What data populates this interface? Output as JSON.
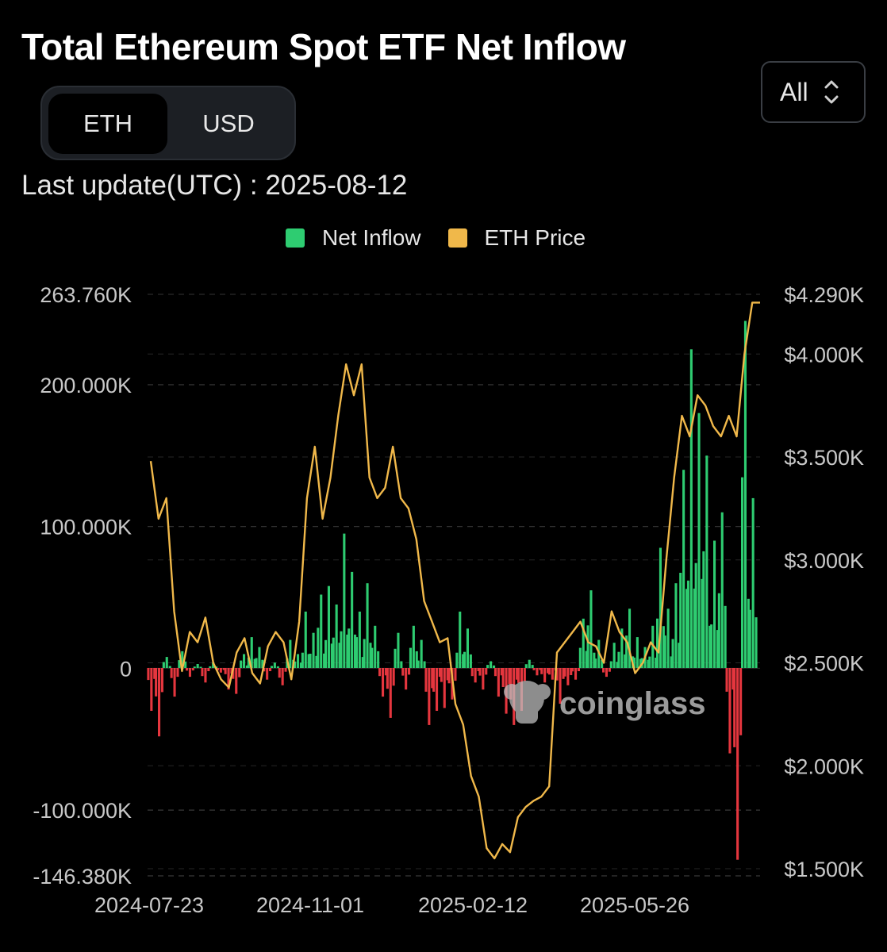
{
  "header": {
    "title": "Total Ethereum Spot ETF Net Inflow",
    "toggle": [
      "ETH",
      "USD"
    ],
    "toggle_selected": "ETH",
    "range_label": "All",
    "last_update": "Last update(UTC) : 2025-08-12",
    "watermark": "coinglass"
  },
  "colors": {
    "inflow_positive": "#2ecc71",
    "inflow_negative": "#e5363e",
    "price_line": "#f0b84a",
    "background": "#000000"
  },
  "chart_data": {
    "type": "bar+line",
    "legend": [
      "Net Inflow",
      "ETH Price"
    ],
    "x_tick_labels": [
      "2024-07-23",
      "2024-11-01",
      "2025-02-12",
      "2025-05-26"
    ],
    "y_left_tick_labels": [
      "263.760K",
      "200.000K",
      "100.000K",
      "0",
      "-100.000K",
      "-146.380K"
    ],
    "y_left_ticks": [
      263760,
      200000,
      100000,
      0,
      -100000,
      -146380
    ],
    "y_left_range": [
      -146380,
      263760
    ],
    "y_right_tick_labels": [
      "$4.290K",
      "$4.000K",
      "$3.500K",
      "$3.000K",
      "$2.500K",
      "$2.000K",
      "$1.500K"
    ],
    "y_right_ticks": [
      4290,
      4000,
      3500,
      3000,
      2500,
      2000,
      1500
    ],
    "y_right_range": [
      1500,
      4290
    ],
    "grid": true,
    "start_date": "2024-07-23",
    "end_date": "2025-08-12",
    "net_inflow_series": {
      "name": "Net Inflow",
      "weekly_values_eth": [
        -30000,
        -48000,
        8000,
        -20000,
        12000,
        -6000,
        3000,
        -10000,
        4000,
        -3000,
        -15000,
        -18000,
        10000,
        22000,
        15000,
        -8000,
        4000,
        -12000,
        20000,
        10000,
        40000,
        25000,
        52000,
        58000,
        45000,
        95000,
        68000,
        40000,
        60000,
        30000,
        -20000,
        -35000,
        25000,
        -15000,
        30000,
        20000,
        -40000,
        -30000,
        -28000,
        -22000,
        40000,
        28000,
        -10000,
        -15000,
        5000,
        -20000,
        -32000,
        -40000,
        -30000,
        6000,
        -5000,
        -10000,
        -8000,
        -25000,
        -12000,
        -8000,
        35000,
        55000,
        20000,
        -6000,
        18000,
        28000,
        42000,
        22000,
        15000,
        30000,
        85000,
        42000,
        60000,
        140000,
        225000,
        180000,
        150000,
        90000,
        110000,
        -60000,
        -135000,
        245000,
        120000
      ]
    },
    "eth_price_series": {
      "name": "ETH Price",
      "weekly_values_usd": [
        3480,
        3200,
        3300,
        2750,
        2460,
        2650,
        2600,
        2720,
        2500,
        2420,
        2380,
        2550,
        2620,
        2450,
        2400,
        2580,
        2650,
        2600,
        2420,
        2700,
        3300,
        3550,
        3200,
        3400,
        3700,
        3950,
        3800,
        3950,
        3400,
        3300,
        3350,
        3550,
        3300,
        3250,
        3100,
        2800,
        2700,
        2600,
        2620,
        2300,
        2200,
        1950,
        1850,
        1600,
        1550,
        1620,
        1580,
        1750,
        1800,
        1830,
        1850,
        1900,
        2550,
        2600,
        2650,
        2700,
        2600,
        2580,
        2500,
        2750,
        2650,
        2600,
        2450,
        2500,
        2600,
        2550,
        3000,
        3400,
        3700,
        3600,
        3800,
        3750,
        3650,
        3600,
        3700,
        3600,
        4000,
        4250,
        4250
      ]
    }
  }
}
